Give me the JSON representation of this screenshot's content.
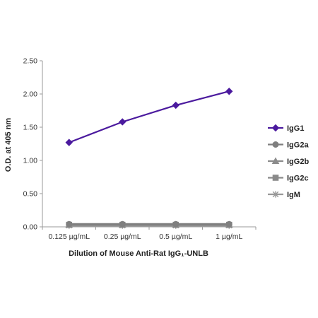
{
  "chart_data": {
    "type": "line",
    "title": "",
    "xlabel": "Dilution of Mouse Anti-Rat IgG₁-UNLB",
    "ylabel": "O.D. at 405 nm",
    "categories": [
      "0.125 µg/mL",
      "0.25 µg/mL",
      "0.5 µg/mL",
      "1 µg/mL"
    ],
    "ylim": [
      0,
      2.5
    ],
    "yticks": [
      "0.00",
      "0.50",
      "1.00",
      "1.50",
      "2.00",
      "2.50"
    ],
    "grid": false,
    "legend_position": "right",
    "series": [
      {
        "name": "IgG1",
        "values": [
          1.27,
          1.58,
          1.83,
          2.04
        ],
        "color": "#4B1A9E",
        "marker": "diamond"
      },
      {
        "name": "IgG2a",
        "values": [
          0.04,
          0.04,
          0.04,
          0.04
        ],
        "color": "#7F7F7F",
        "marker": "circle"
      },
      {
        "name": "IgG2b",
        "values": [
          0.03,
          0.03,
          0.03,
          0.03
        ],
        "color": "#8C8C8C",
        "marker": "triangle"
      },
      {
        "name": "IgG2c",
        "values": [
          0.03,
          0.03,
          0.03,
          0.03
        ],
        "color": "#8A8A8A",
        "marker": "square"
      },
      {
        "name": "IgM",
        "values": [
          0.02,
          0.02,
          0.02,
          0.02
        ],
        "color": "#999999",
        "marker": "star"
      }
    ]
  }
}
